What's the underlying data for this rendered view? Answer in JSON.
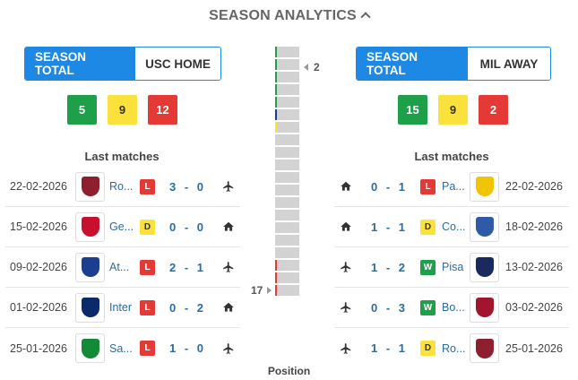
{
  "header": {
    "title": "SEASON ANALYTICS"
  },
  "left": {
    "toggle": {
      "active": "SEASON TOTAL",
      "inactive": "USC HOME"
    },
    "counts": {
      "win": "5",
      "draw": "9",
      "loss": "12"
    },
    "last_matches_title": "Last matches",
    "matches": [
      {
        "date": "22-02-2026",
        "team": "Ro...",
        "result": "L",
        "score": "3 - 0",
        "venue_icon": "plane-icon",
        "crest": "#8e1f2f"
      },
      {
        "date": "15-02-2026",
        "team": "Ge...",
        "result": "D",
        "score": "0 - 0",
        "venue_icon": "home-icon",
        "crest": "#c8102e"
      },
      {
        "date": "09-02-2026",
        "team": "At...",
        "result": "L",
        "score": "2 - 1",
        "venue_icon": "plane-icon",
        "crest": "#1b3e8f"
      },
      {
        "date": "01-02-2026",
        "team": "Inter",
        "result": "L",
        "score": "0 - 2",
        "venue_icon": "home-icon",
        "crest": "#0b2a6b"
      },
      {
        "date": "25-01-2026",
        "team": "Sa...",
        "result": "L",
        "score": "1 - 0",
        "venue_icon": "plane-icon",
        "crest": "#138a36"
      }
    ]
  },
  "right": {
    "toggle": {
      "active": "SEASON TOTAL",
      "inactive": "MIL AWAY"
    },
    "counts": {
      "win": "15",
      "draw": "9",
      "loss": "2"
    },
    "last_matches_title": "Last matches",
    "matches": [
      {
        "date": "22-02-2026",
        "team": "Pa...",
        "result": "L",
        "score": "0 - 1",
        "venue_icon": "home-icon",
        "crest": "#f2c300"
      },
      {
        "date": "18-02-2026",
        "team": "Co...",
        "result": "D",
        "score": "1 - 1",
        "venue_icon": "home-icon",
        "crest": "#2e5aa8"
      },
      {
        "date": "13-02-2026",
        "team": "Pisa",
        "result": "W",
        "score": "1 - 2",
        "venue_icon": "plane-icon",
        "crest": "#1a2a5e"
      },
      {
        "date": "03-02-2026",
        "team": "Bo...",
        "result": "W",
        "score": "0 - 3",
        "venue_icon": "plane-icon",
        "crest": "#a3142d"
      },
      {
        "date": "25-01-2026",
        "team": "Ro...",
        "result": "D",
        "score": "1 - 1",
        "venue_icon": "plane-icon",
        "crest": "#8e1f2f"
      }
    ]
  },
  "position": {
    "caption": "Position",
    "top_team_position": "2",
    "bottom_team_position": "17",
    "markers": [
      "#1ea04a",
      "#1ea04a",
      "#1ea04a",
      "#1ea04a",
      "#1ea04a",
      "#1e3c8f",
      "#fbe13b",
      "",
      "",
      "",
      "",
      "",
      "",
      "",
      "",
      "",
      "",
      "#e53935",
      "#e53935",
      "#e53935"
    ],
    "colors": {
      "win": "#1ea04a",
      "draw": "#fbe13b",
      "loss": "#e53935",
      "accent": "#1e88e5"
    }
  }
}
